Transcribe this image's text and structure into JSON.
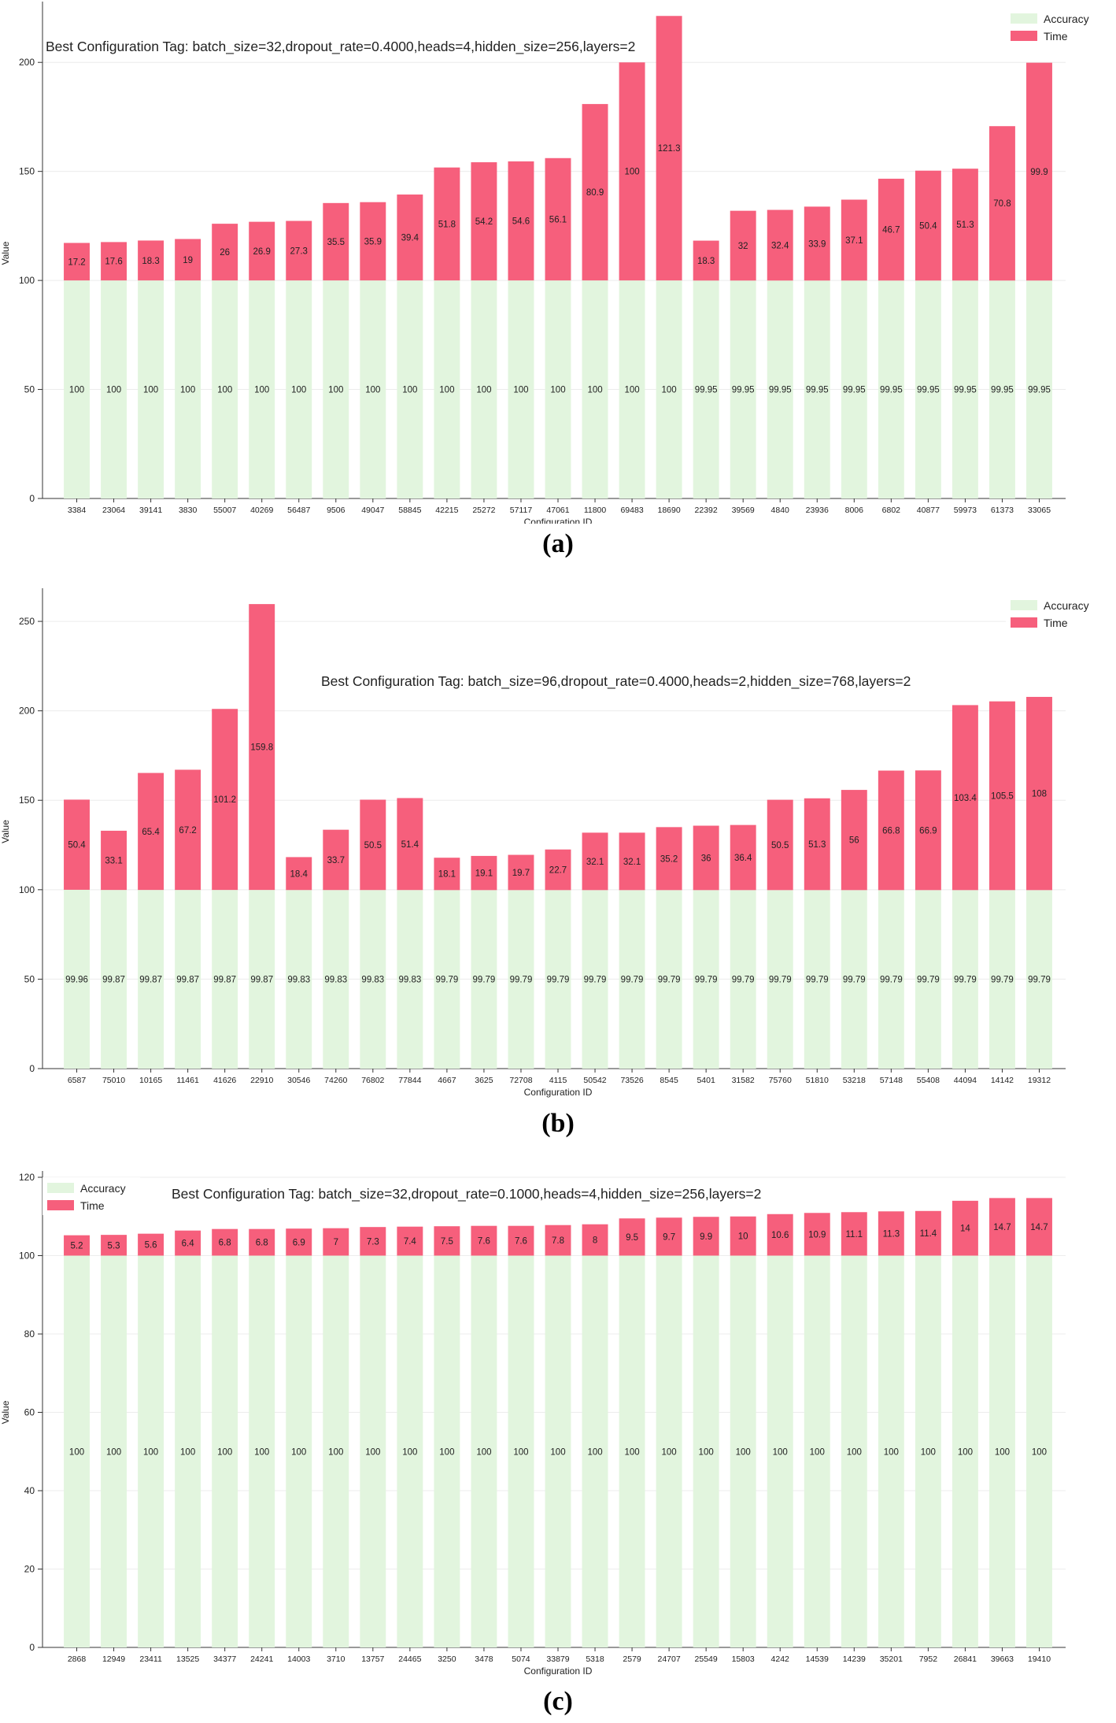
{
  "chart_data": [
    {
      "type": "bar",
      "panel_label": "(a)",
      "title": "Best Configuration Tag: batch_size=32,dropout_rate=0.4000,heads=4,hidden_size=256,layers=2",
      "xlabel": "Configuration ID",
      "ylabel": "Value",
      "ylim": [
        0,
        225
      ],
      "yticks": [
        0,
        50,
        100,
        150,
        200
      ],
      "legend": [
        "Accuracy",
        "Time"
      ],
      "legend_position": "top-right",
      "categories": [
        "3384",
        "23064",
        "39141",
        "3830",
        "55007",
        "40269",
        "56487",
        "9506",
        "49047",
        "58845",
        "42215",
        "25272",
        "57117",
        "47061",
        "11800",
        "69483",
        "18690",
        "22392",
        "39569",
        "4840",
        "23936",
        "8006",
        "6802",
        "40877",
        "59973",
        "61373",
        "33065"
      ],
      "series": [
        {
          "name": "Accuracy",
          "values": [
            100,
            100,
            100,
            100,
            100,
            100,
            100,
            100,
            100,
            100,
            100,
            100,
            100,
            100,
            100,
            100,
            100,
            99.95,
            99.95,
            99.95,
            99.95,
            99.95,
            99.95,
            99.95,
            99.95,
            99.95,
            99.95
          ]
        },
        {
          "name": "Time",
          "values": [
            17.2,
            17.6,
            18.3,
            19,
            26,
            26.9,
            27.3,
            35.5,
            35.9,
            39.4,
            51.8,
            54.2,
            54.6,
            56.1,
            80.9,
            100,
            121.3,
            18.3,
            32,
            32.4,
            33.9,
            37.1,
            46.7,
            50.4,
            51.3,
            70.8,
            99.9
          ]
        }
      ]
    },
    {
      "type": "bar",
      "panel_label": "(b)",
      "title": "Best Configuration Tag: batch_size=96,dropout_rate=0.4000,heads=2,hidden_size=768,layers=2",
      "xlabel": "Configuration ID",
      "ylabel": "Value",
      "ylim": [
        0,
        265
      ],
      "yticks": [
        0,
        50,
        100,
        150,
        200,
        250
      ],
      "legend": [
        "Accuracy",
        "Time"
      ],
      "legend_position": "top-right",
      "categories": [
        "6587",
        "75010",
        "10165",
        "11461",
        "41626",
        "22910",
        "30546",
        "74260",
        "76802",
        "77844",
        "4667",
        "3625",
        "72708",
        "4115",
        "50542",
        "73526",
        "8545",
        "5401",
        "31582",
        "75760",
        "51810",
        "53218",
        "57148",
        "55408",
        "44094",
        "14142",
        "19312"
      ],
      "series": [
        {
          "name": "Accuracy",
          "values": [
            99.96,
            99.87,
            99.87,
            99.87,
            99.87,
            99.87,
            99.83,
            99.83,
            99.83,
            99.83,
            99.79,
            99.79,
            99.79,
            99.79,
            99.79,
            99.79,
            99.79,
            99.79,
            99.79,
            99.79,
            99.79,
            99.79,
            99.79,
            99.79,
            99.79,
            99.79,
            99.79
          ]
        },
        {
          "name": "Time",
          "values": [
            50.4,
            33.1,
            65.4,
            67.2,
            101.2,
            159.8,
            18.4,
            33.7,
            50.5,
            51.4,
            18.1,
            19.1,
            19.7,
            22.7,
            32.1,
            32.1,
            35.2,
            36,
            36.4,
            50.5,
            51.3,
            56,
            66.8,
            66.9,
            103.4,
            105.5,
            108
          ]
        }
      ]
    },
    {
      "type": "bar",
      "panel_label": "(c)",
      "title": "Best Configuration Tag: batch_size=32,dropout_rate=0.1000,heads=4,hidden_size=256,layers=2",
      "xlabel": "Configuration ID",
      "ylabel": "Value",
      "ylim": [
        0,
        120
      ],
      "yticks": [
        0,
        20,
        40,
        60,
        80,
        100,
        120
      ],
      "legend": [
        "Accuracy",
        "Time"
      ],
      "legend_position": "top-left",
      "categories": [
        "2868",
        "12949",
        "23411",
        "13525",
        "34377",
        "24241",
        "14003",
        "3710",
        "13757",
        "24465",
        "3250",
        "3478",
        "5074",
        "33879",
        "5318",
        "2579",
        "24707",
        "25549",
        "15803",
        "4242",
        "14539",
        "14239",
        "35201",
        "7952",
        "26841",
        "39663",
        "19410"
      ],
      "series": [
        {
          "name": "Accuracy",
          "values": [
            100,
            100,
            100,
            100,
            100,
            100,
            100,
            100,
            100,
            100,
            100,
            100,
            100,
            100,
            100,
            100,
            100,
            100,
            100,
            100,
            100,
            100,
            100,
            100,
            100,
            100,
            100
          ]
        },
        {
          "name": "Time",
          "values": [
            5.2,
            5.3,
            5.6,
            6.4,
            6.8,
            6.8,
            6.9,
            7,
            7.3,
            7.4,
            7.5,
            7.6,
            7.6,
            7.8,
            8,
            9.5,
            9.7,
            9.9,
            10,
            10.6,
            10.9,
            11.1,
            11.3,
            11.4,
            14,
            14.7,
            14.7
          ]
        }
      ]
    }
  ],
  "colors": {
    "accuracy": "#e2f5de",
    "time": "#f65f7c",
    "grid": "#ececec",
    "axis": "#333333",
    "text": "#222222"
  }
}
